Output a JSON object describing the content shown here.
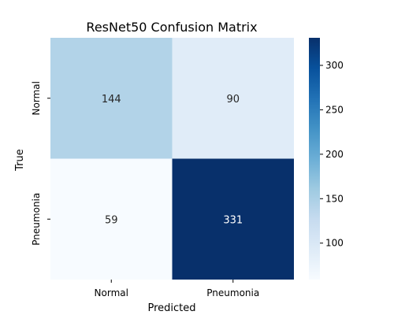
{
  "chart_data": {
    "type": "heatmap",
    "title": "ResNet50 Confusion Matrix",
    "xlabel": "Predicted",
    "ylabel": "True",
    "x_categories": [
      "Normal",
      "Pneumonia"
    ],
    "y_categories": [
      "Normal",
      "Pneumonia"
    ],
    "values": [
      [
        144,
        90
      ],
      [
        59,
        331
      ]
    ],
    "colormap": "Blues",
    "colormap_stops": [
      "#f7fbff",
      "#deebf7",
      "#c6dbef",
      "#9ecae1",
      "#6baed6",
      "#4292c6",
      "#2171b5",
      "#08519c",
      "#08306b"
    ],
    "value_range": [
      59,
      331
    ],
    "colorbar_ticks": [
      "100",
      "150",
      "200",
      "250",
      "300"
    ],
    "colorbar_tick_values": [
      100,
      150,
      200,
      250,
      300
    ]
  }
}
